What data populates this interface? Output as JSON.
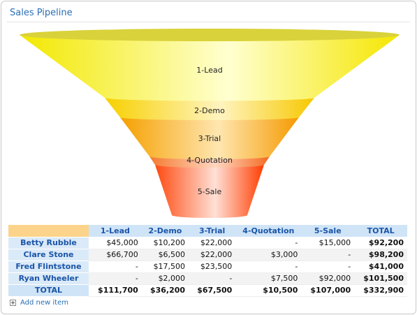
{
  "panel": {
    "title": "Sales Pipeline"
  },
  "chart_data": {
    "type": "funnel",
    "title": "",
    "stages": [
      "1-Lead",
      "2-Demo",
      "3-Trial",
      "4-Quotation",
      "5-Sale"
    ],
    "values": [
      111700,
      36200,
      67500,
      10500,
      107000
    ],
    "colors": [
      "#ffff00",
      "#ffdd00",
      "#ffae00",
      "#ff7a2a",
      "#ff4000"
    ]
  },
  "table": {
    "corner": "",
    "columns": [
      "1-Lead",
      "2-Demo",
      "3-Trial",
      "4-Quotation",
      "5-Sale",
      "TOTAL"
    ],
    "rows": [
      {
        "name": "Betty Rubble",
        "cells": [
          "$45,000",
          "$10,200",
          "$22,000",
          "-",
          "$15,000",
          "$92,200"
        ]
      },
      {
        "name": "Clare Stone",
        "cells": [
          "$66,700",
          "$6,500",
          "$22,000",
          "$3,000",
          "-",
          "$98,200"
        ]
      },
      {
        "name": "Fred Flintstone",
        "cells": [
          "-",
          "$17,500",
          "$23,500",
          "-",
          "-",
          "$41,000"
        ]
      },
      {
        "name": "Ryan Wheeler",
        "cells": [
          "-",
          "$2,000",
          "-",
          "$7,500",
          "$92,000",
          "$101,500"
        ]
      }
    ],
    "total": {
      "name": "TOTAL",
      "cells": [
        "$111,700",
        "$36,200",
        "$67,500",
        "$10,500",
        "$107,000",
        "$332,900"
      ]
    }
  },
  "footer": {
    "add_item_label": "Add new item",
    "add_icon": "plus-box-icon"
  }
}
